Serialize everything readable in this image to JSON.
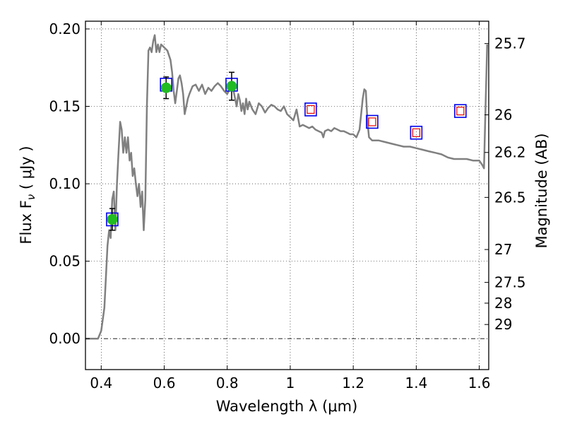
{
  "chart_data": {
    "type": "line",
    "xlabel": "Wavelength  λ (μm)",
    "ylabel_left": "Flux  F",
    "ylabel_left_sub": "ν",
    "ylabel_left_unit": " ( μJy )",
    "ylabel_right": "Magnitude (AB)",
    "xlim": [
      0.35,
      1.63
    ],
    "ylim": [
      -0.02,
      0.205
    ],
    "grid": true,
    "x_ticks": [
      0.4,
      0.6,
      0.8,
      1.0,
      1.2,
      1.4,
      1.6
    ],
    "x_tick_labels": [
      "0.4",
      "0.6",
      "0.8",
      "1",
      "1.2",
      "1.4",
      "1.6"
    ],
    "y_ticks": [
      0.0,
      0.05,
      0.1,
      0.15,
      0.2
    ],
    "y_tick_labels": [
      "0.00",
      "0.05",
      "0.10",
      "0.15",
      "0.20"
    ],
    "right_ticks": [
      {
        "label": "25.7",
        "value": 25.7
      },
      {
        "label": "26",
        "value": 26.0
      },
      {
        "label": "26.2",
        "value": 26.2
      },
      {
        "label": "26.5",
        "value": 26.5
      },
      {
        "label": "27",
        "value": 27.0
      },
      {
        "label": "27.5",
        "value": 27.5
      },
      {
        "label": "28",
        "value": 28.0
      },
      {
        "label": "29",
        "value": 29.0
      }
    ],
    "template_color": "#808080",
    "observed_color": "#22bb22",
    "model_box_color": "#0000ee",
    "predicted_color": "#ee0000",
    "template_spectrum": [
      [
        0.35,
        0.0
      ],
      [
        0.39,
        0.0
      ],
      [
        0.4,
        0.005
      ],
      [
        0.41,
        0.02
      ],
      [
        0.42,
        0.06
      ],
      [
        0.425,
        0.07
      ],
      [
        0.43,
        0.065
      ],
      [
        0.435,
        0.09
      ],
      [
        0.44,
        0.095
      ],
      [
        0.445,
        0.07
      ],
      [
        0.45,
        0.1
      ],
      [
        0.455,
        0.12
      ],
      [
        0.46,
        0.14
      ],
      [
        0.465,
        0.135
      ],
      [
        0.47,
        0.12
      ],
      [
        0.475,
        0.13
      ],
      [
        0.48,
        0.12
      ],
      [
        0.485,
        0.13
      ],
      [
        0.49,
        0.115
      ],
      [
        0.495,
        0.12
      ],
      [
        0.5,
        0.105
      ],
      [
        0.505,
        0.11
      ],
      [
        0.51,
        0.1
      ],
      [
        0.515,
        0.092
      ],
      [
        0.52,
        0.1
      ],
      [
        0.525,
        0.085
      ],
      [
        0.53,
        0.095
      ],
      [
        0.535,
        0.07
      ],
      [
        0.54,
        0.09
      ],
      [
        0.545,
        0.15
      ],
      [
        0.55,
        0.186
      ],
      [
        0.555,
        0.188
      ],
      [
        0.56,
        0.185
      ],
      [
        0.565,
        0.192
      ],
      [
        0.57,
        0.196
      ],
      [
        0.575,
        0.185
      ],
      [
        0.58,
        0.19
      ],
      [
        0.585,
        0.185
      ],
      [
        0.59,
        0.19
      ],
      [
        0.6,
        0.188
      ],
      [
        0.61,
        0.186
      ],
      [
        0.62,
        0.18
      ],
      [
        0.625,
        0.172
      ],
      [
        0.63,
        0.16
      ],
      [
        0.635,
        0.152
      ],
      [
        0.64,
        0.16
      ],
      [
        0.645,
        0.168
      ],
      [
        0.65,
        0.17
      ],
      [
        0.655,
        0.165
      ],
      [
        0.66,
        0.158
      ],
      [
        0.665,
        0.145
      ],
      [
        0.67,
        0.15
      ],
      [
        0.675,
        0.155
      ],
      [
        0.68,
        0.158
      ],
      [
        0.69,
        0.163
      ],
      [
        0.7,
        0.164
      ],
      [
        0.71,
        0.16
      ],
      [
        0.72,
        0.164
      ],
      [
        0.73,
        0.158
      ],
      [
        0.74,
        0.162
      ],
      [
        0.75,
        0.16
      ],
      [
        0.76,
        0.163
      ],
      [
        0.77,
        0.165
      ],
      [
        0.78,
        0.163
      ],
      [
        0.79,
        0.16
      ],
      [
        0.8,
        0.158
      ],
      [
        0.81,
        0.162
      ],
      [
        0.82,
        0.16
      ],
      [
        0.83,
        0.15
      ],
      [
        0.835,
        0.158
      ],
      [
        0.84,
        0.154
      ],
      [
        0.845,
        0.147
      ],
      [
        0.85,
        0.152
      ],
      [
        0.855,
        0.145
      ],
      [
        0.86,
        0.155
      ],
      [
        0.865,
        0.148
      ],
      [
        0.87,
        0.153
      ],
      [
        0.88,
        0.148
      ],
      [
        0.89,
        0.145
      ],
      [
        0.9,
        0.152
      ],
      [
        0.91,
        0.15
      ],
      [
        0.92,
        0.146
      ],
      [
        0.93,
        0.149
      ],
      [
        0.94,
        0.151
      ],
      [
        0.95,
        0.15
      ],
      [
        0.96,
        0.148
      ],
      [
        0.97,
        0.147
      ],
      [
        0.98,
        0.15
      ],
      [
        0.99,
        0.145
      ],
      [
        1.0,
        0.143
      ],
      [
        1.01,
        0.141
      ],
      [
        1.02,
        0.148
      ],
      [
        1.03,
        0.137
      ],
      [
        1.04,
        0.138
      ],
      [
        1.05,
        0.137
      ],
      [
        1.06,
        0.136
      ],
      [
        1.07,
        0.137
      ],
      [
        1.08,
        0.135
      ],
      [
        1.09,
        0.134
      ],
      [
        1.1,
        0.133
      ],
      [
        1.105,
        0.13
      ],
      [
        1.11,
        0.134
      ],
      [
        1.12,
        0.135
      ],
      [
        1.13,
        0.134
      ],
      [
        1.14,
        0.136
      ],
      [
        1.15,
        0.135
      ],
      [
        1.16,
        0.134
      ],
      [
        1.17,
        0.134
      ],
      [
        1.18,
        0.133
      ],
      [
        1.19,
        0.132
      ],
      [
        1.2,
        0.132
      ],
      [
        1.21,
        0.13
      ],
      [
        1.22,
        0.135
      ],
      [
        1.23,
        0.155
      ],
      [
        1.235,
        0.161
      ],
      [
        1.24,
        0.16
      ],
      [
        1.245,
        0.14
      ],
      [
        1.25,
        0.13
      ],
      [
        1.26,
        0.128
      ],
      [
        1.28,
        0.128
      ],
      [
        1.3,
        0.127
      ],
      [
        1.32,
        0.126
      ],
      [
        1.34,
        0.125
      ],
      [
        1.36,
        0.124
      ],
      [
        1.38,
        0.124
      ],
      [
        1.4,
        0.123
      ],
      [
        1.42,
        0.122
      ],
      [
        1.44,
        0.121
      ],
      [
        1.46,
        0.12
      ],
      [
        1.48,
        0.119
      ],
      [
        1.5,
        0.117
      ],
      [
        1.52,
        0.116
      ],
      [
        1.54,
        0.116
      ],
      [
        1.56,
        0.116
      ],
      [
        1.58,
        0.115
      ],
      [
        1.6,
        0.115
      ],
      [
        1.61,
        0.112
      ],
      [
        1.615,
        0.11
      ],
      [
        1.62,
        0.15
      ],
      [
        1.625,
        0.19
      ]
    ],
    "observed_points": [
      {
        "x": 0.435,
        "y": 0.077,
        "yerr": 0.007
      },
      {
        "x": 0.606,
        "y": 0.162,
        "yerr": 0.007
      },
      {
        "x": 0.814,
        "y": 0.163,
        "yerr": 0.009
      }
    ],
    "model_points": [
      {
        "x": 0.435,
        "y": 0.077
      },
      {
        "x": 0.606,
        "y": 0.164
      },
      {
        "x": 0.814,
        "y": 0.164
      },
      {
        "x": 1.065,
        "y": 0.148
      },
      {
        "x": 1.26,
        "y": 0.14
      },
      {
        "x": 1.4,
        "y": 0.133
      },
      {
        "x": 1.54,
        "y": 0.147
      }
    ],
    "predicted_points": [
      {
        "x": 1.065,
        "y": 0.148
      },
      {
        "x": 1.26,
        "y": 0.14
      },
      {
        "x": 1.4,
        "y": 0.133
      },
      {
        "x": 1.54,
        "y": 0.147
      }
    ]
  }
}
